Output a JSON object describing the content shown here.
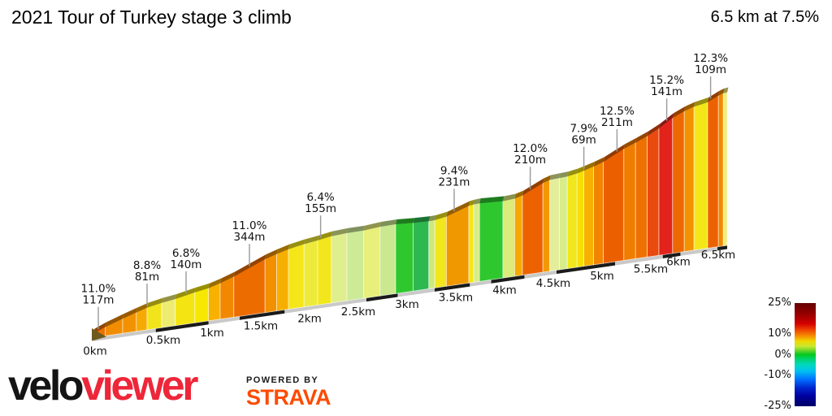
{
  "header": {
    "title": "2021 Tour of Turkey stage 3 climb",
    "summary": "6.5 km at 7.5%"
  },
  "chart_data": {
    "type": "area",
    "title": "2021 Tour of Turkey stage 3 climb",
    "total_distance_km": 6.5,
    "avg_gradient_pct": 7.5,
    "x_axis": {
      "unit": "km",
      "ticks": [
        {
          "km": 0,
          "label": "0km"
        },
        {
          "km": 0.5,
          "label": "0.5km"
        },
        {
          "km": 1,
          "label": "1km"
        },
        {
          "km": 1.5,
          "label": "1.5km"
        },
        {
          "km": 2,
          "label": "2km"
        },
        {
          "km": 2.5,
          "label": "2.5km"
        },
        {
          "km": 3,
          "label": "3km"
        },
        {
          "km": 3.5,
          "label": "3.5km"
        },
        {
          "km": 4,
          "label": "4km"
        },
        {
          "km": 4.5,
          "label": "4.5km"
        },
        {
          "km": 5,
          "label": "5km"
        },
        {
          "km": 5.5,
          "label": "5.5km"
        },
        {
          "km": 6,
          "label": "6km"
        },
        {
          "km": 6.5,
          "label": "6.5km"
        }
      ]
    },
    "annotations": [
      {
        "gradient": "11.0%",
        "length": "117m",
        "km": 0.05
      },
      {
        "gradient": "8.8%",
        "length": "81m",
        "km": 0.55
      },
      {
        "gradient": "6.8%",
        "length": "140m",
        "km": 0.95
      },
      {
        "gradient": "11.0%",
        "length": "344m",
        "km": 1.6
      },
      {
        "gradient": "6.4%",
        "length": "155m",
        "km": 2.33
      },
      {
        "gradient": "9.4%",
        "length": "231m",
        "km": 3.7
      },
      {
        "gradient": "12.0%",
        "length": "210m",
        "km": 4.48
      },
      {
        "gradient": "7.9%",
        "length": "69m",
        "km": 5.03
      },
      {
        "gradient": "12.5%",
        "length": "211m",
        "km": 5.37
      },
      {
        "gradient": "15.2%",
        "length": "141m",
        "km": 5.88
      },
      {
        "gradient": "12.3%",
        "length": "109m",
        "km": 6.33
      }
    ],
    "segments": [
      {
        "from": 0.0,
        "to": 0.12,
        "grade": 11.0,
        "color": "#ee7000"
      },
      {
        "from": 0.12,
        "to": 0.3,
        "grade": 9.5,
        "color": "#f28c00"
      },
      {
        "from": 0.3,
        "to": 0.44,
        "grade": 9.0,
        "color": "#f39200"
      },
      {
        "from": 0.44,
        "to": 0.55,
        "grade": 8.8,
        "color": "#f6a900"
      },
      {
        "from": 0.55,
        "to": 0.7,
        "grade": 6.5,
        "color": "#f2e41c"
      },
      {
        "from": 0.7,
        "to": 0.84,
        "grade": 5.5,
        "color": "#eeec70"
      },
      {
        "from": 0.84,
        "to": 1.04,
        "grade": 6.8,
        "color": "#f4e512"
      },
      {
        "from": 1.04,
        "to": 1.18,
        "grade": 6.0,
        "color": "#f6e800"
      },
      {
        "from": 1.18,
        "to": 1.3,
        "grade": 8.5,
        "color": "#f7b100"
      },
      {
        "from": 1.3,
        "to": 1.44,
        "grade": 9.5,
        "color": "#f28800"
      },
      {
        "from": 1.44,
        "to": 1.76,
        "grade": 11.0,
        "color": "#ed6c00"
      },
      {
        "from": 1.76,
        "to": 1.88,
        "grade": 9.0,
        "color": "#f29000"
      },
      {
        "from": 1.88,
        "to": 2.0,
        "grade": 8.0,
        "color": "#f6ae00"
      },
      {
        "from": 2.0,
        "to": 2.16,
        "grade": 6.4,
        "color": "#f4e619"
      },
      {
        "from": 2.16,
        "to": 2.3,
        "grade": 5.5,
        "color": "#eeea3c"
      },
      {
        "from": 2.3,
        "to": 2.44,
        "grade": 6.0,
        "color": "#f2e71c"
      },
      {
        "from": 2.44,
        "to": 2.6,
        "grade": 4.0,
        "color": "#dfee8e"
      },
      {
        "from": 2.6,
        "to": 2.77,
        "grade": 3.0,
        "color": "#cdea96"
      },
      {
        "from": 2.77,
        "to": 2.94,
        "grade": 4.5,
        "color": "#e8ef7a"
      },
      {
        "from": 2.94,
        "to": 3.1,
        "grade": 3.2,
        "color": "#c9e88f"
      },
      {
        "from": 3.1,
        "to": 3.28,
        "grade": 1.5,
        "color": "#2ec82e"
      },
      {
        "from": 3.28,
        "to": 3.44,
        "grade": 2.2,
        "color": "#2db850"
      },
      {
        "from": 3.44,
        "to": 3.5,
        "grade": 3.5,
        "color": "#cfe87d"
      },
      {
        "from": 3.5,
        "to": 3.62,
        "grade": 6.0,
        "color": "#f2e71c"
      },
      {
        "from": 3.62,
        "to": 3.85,
        "grade": 9.4,
        "color": "#f09800"
      },
      {
        "from": 3.85,
        "to": 3.9,
        "grade": 6.0,
        "color": "#f4e619"
      },
      {
        "from": 3.9,
        "to": 3.96,
        "grade": 4.0,
        "color": "#d8ec8a"
      },
      {
        "from": 3.96,
        "to": 4.2,
        "grade": 1.8,
        "color": "#2ec82e"
      },
      {
        "from": 4.2,
        "to": 4.32,
        "grade": 4.2,
        "color": "#dcec7a"
      },
      {
        "from": 4.32,
        "to": 4.4,
        "grade": 8.0,
        "color": "#f6a900"
      },
      {
        "from": 4.4,
        "to": 4.61,
        "grade": 12.0,
        "color": "#ec6200"
      },
      {
        "from": 4.61,
        "to": 4.68,
        "grade": 9.0,
        "color": "#f49800"
      },
      {
        "from": 4.68,
        "to": 4.78,
        "grade": 4.0,
        "color": "#e4ee9a"
      },
      {
        "from": 4.78,
        "to": 4.86,
        "grade": 3.8,
        "color": "#d8ec8a"
      },
      {
        "from": 4.86,
        "to": 4.96,
        "grade": 6.2,
        "color": "#f2e71c"
      },
      {
        "from": 4.96,
        "to": 5.03,
        "grade": 7.9,
        "color": "#f5e000"
      },
      {
        "from": 5.03,
        "to": 5.13,
        "grade": 8.5,
        "color": "#f7b100"
      },
      {
        "from": 5.13,
        "to": 5.23,
        "grade": 9.5,
        "color": "#f28400"
      },
      {
        "from": 5.23,
        "to": 5.44,
        "grade": 12.5,
        "color": "#ec5f00"
      },
      {
        "from": 5.44,
        "to": 5.56,
        "grade": 10.5,
        "color": "#f07c00"
      },
      {
        "from": 5.56,
        "to": 5.68,
        "grade": 11.0,
        "color": "#ee7000"
      },
      {
        "from": 5.68,
        "to": 5.8,
        "grade": 13.0,
        "color": "#e94a0e"
      },
      {
        "from": 5.8,
        "to": 5.94,
        "grade": 15.2,
        "color": "#e2231c"
      },
      {
        "from": 5.94,
        "to": 6.06,
        "grade": 11.5,
        "color": "#ed6800"
      },
      {
        "from": 6.06,
        "to": 6.16,
        "grade": 9.0,
        "color": "#f39200"
      },
      {
        "from": 6.16,
        "to": 6.3,
        "grade": 6.5,
        "color": "#f4e619"
      },
      {
        "from": 6.3,
        "to": 6.41,
        "grade": 12.3,
        "color": "#ec6200"
      },
      {
        "from": 6.41,
        "to": 6.46,
        "grade": 9.5,
        "color": "#f28800"
      },
      {
        "from": 6.46,
        "to": 6.5,
        "grade": 5.0,
        "color": "#eeee7c"
      }
    ],
    "baseline_dashes": [
      [
        0.64,
        1.18
      ],
      [
        1.5,
        1.96
      ],
      [
        2.8,
        3.12
      ],
      [
        3.5,
        3.86
      ],
      [
        4.08,
        4.42
      ],
      [
        4.75,
        5.35
      ],
      [
        5.84,
        6.02
      ],
      [
        6.4,
        6.5
      ]
    ],
    "legend": {
      "position": "bottom-right",
      "ticks": [
        {
          "label": "25%",
          "value": 25
        },
        {
          "label": "10%",
          "value": 10
        },
        {
          "label": "0%",
          "value": 0
        },
        {
          "label": "-10%",
          "value": -10
        },
        {
          "label": "-25%",
          "value": -25
        }
      ],
      "stops": [
        {
          "value": 25,
          "color": "#650000"
        },
        {
          "value": 19,
          "color": "#9e0000"
        },
        {
          "value": 15,
          "color": "#d40000"
        },
        {
          "value": 12,
          "color": "#ee4400"
        },
        {
          "value": 9,
          "color": "#f59000"
        },
        {
          "value": 6.5,
          "color": "#f0d800"
        },
        {
          "value": 4,
          "color": "#c8e830"
        },
        {
          "value": 1,
          "color": "#38cc28"
        },
        {
          "value": 0,
          "color": "#00c81e"
        },
        {
          "value": -2,
          "color": "#00d26a"
        },
        {
          "value": -5,
          "color": "#00d8c0"
        },
        {
          "value": -8,
          "color": "#00c0f0"
        },
        {
          "value": -12,
          "color": "#0070ff"
        },
        {
          "value": -16,
          "color": "#0028d0"
        },
        {
          "value": -20,
          "color": "#0000a0"
        },
        {
          "value": -25,
          "color": "#000066"
        }
      ]
    }
  },
  "logo": {
    "velo": "velo",
    "viewer": "viewer",
    "powered_by": "POWERED BY",
    "strava": "STRAVA",
    "color_velo": "#141414",
    "color_viewer": "#ee2639",
    "color_strava": "#fc4c02"
  }
}
